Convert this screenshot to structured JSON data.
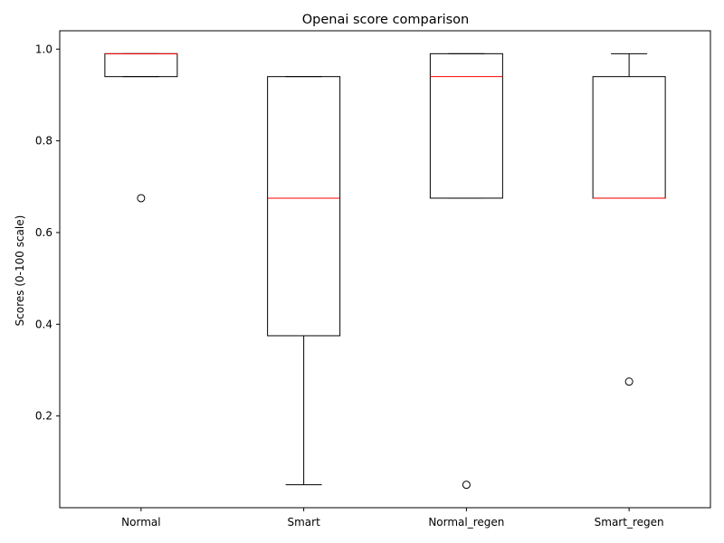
{
  "chart_data": {
    "type": "boxplot",
    "title": "Openai score comparison",
    "xlabel": "",
    "ylabel": "Scores (0-100 scale)",
    "categories": [
      "Normal",
      "Smart",
      "Normal_regen",
      "Smart_regen"
    ],
    "ylim": [
      0.0,
      1.04
    ],
    "yticks": [
      "0.2",
      "0.4",
      "0.6",
      "0.8",
      "1.0"
    ],
    "grid": false,
    "legend": "none",
    "colors": {
      "box": "#000000",
      "median": "#ff0000",
      "background": "#ffffff"
    },
    "boxes": [
      {
        "category": "Normal",
        "whisker_low": 0.94,
        "q1": 0.94,
        "median": 0.99,
        "q3": 0.99,
        "whisker_high": 0.99,
        "outliers": [
          0.675
        ]
      },
      {
        "category": "Smart",
        "whisker_low": 0.05,
        "q1": 0.375,
        "median": 0.675,
        "q3": 0.94,
        "whisker_high": 0.94,
        "outliers": []
      },
      {
        "category": "Normal_regen",
        "whisker_low": 0.675,
        "q1": 0.675,
        "median": 0.94,
        "q3": 0.99,
        "whisker_high": 0.99,
        "outliers": [
          0.05
        ]
      },
      {
        "category": "Smart_regen",
        "whisker_low": 0.675,
        "q1": 0.675,
        "median": 0.675,
        "q3": 0.94,
        "whisker_high": 0.99,
        "outliers": [
          0.275
        ]
      }
    ]
  }
}
